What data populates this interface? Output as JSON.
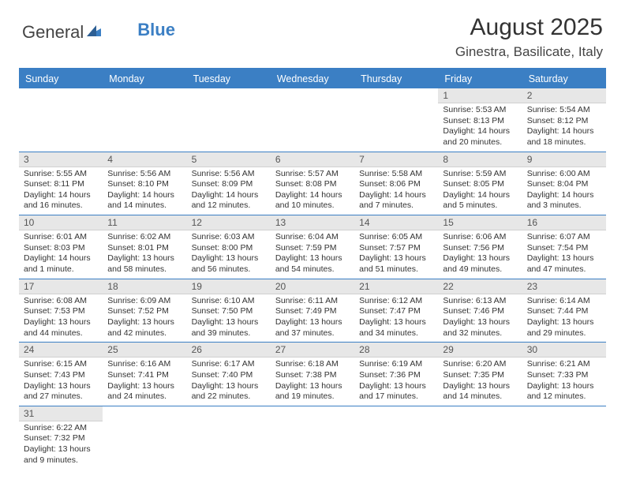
{
  "logo": {
    "part1": "General",
    "part2": "Blue"
  },
  "title": "August 2025",
  "location": "Ginestra, Basilicate, Italy",
  "colors": {
    "accent": "#3b7fc4",
    "header_bg": "#3b7fc4",
    "header_text": "#ffffff",
    "date_bg": "#e7e7e7",
    "divider": "#3b7fc4",
    "text": "#333333",
    "background": "#ffffff"
  },
  "typography": {
    "title_fontsize": 30,
    "location_fontsize": 17,
    "header_fontsize": 12.5,
    "datenum_fontsize": 12,
    "cell_fontsize": 10.5
  },
  "day_names": [
    "Sunday",
    "Monday",
    "Tuesday",
    "Wednesday",
    "Thursday",
    "Friday",
    "Saturday"
  ],
  "weeks": [
    [
      {
        "empty": true
      },
      {
        "empty": true
      },
      {
        "empty": true
      },
      {
        "empty": true
      },
      {
        "empty": true
      },
      {
        "day": "1",
        "sunrise": "Sunrise: 5:53 AM",
        "sunset": "Sunset: 8:13 PM",
        "daylight": "Daylight: 14 hours and 20 minutes."
      },
      {
        "day": "2",
        "sunrise": "Sunrise: 5:54 AM",
        "sunset": "Sunset: 8:12 PM",
        "daylight": "Daylight: 14 hours and 18 minutes."
      }
    ],
    [
      {
        "day": "3",
        "sunrise": "Sunrise: 5:55 AM",
        "sunset": "Sunset: 8:11 PM",
        "daylight": "Daylight: 14 hours and 16 minutes."
      },
      {
        "day": "4",
        "sunrise": "Sunrise: 5:56 AM",
        "sunset": "Sunset: 8:10 PM",
        "daylight": "Daylight: 14 hours and 14 minutes."
      },
      {
        "day": "5",
        "sunrise": "Sunrise: 5:56 AM",
        "sunset": "Sunset: 8:09 PM",
        "daylight": "Daylight: 14 hours and 12 minutes."
      },
      {
        "day": "6",
        "sunrise": "Sunrise: 5:57 AM",
        "sunset": "Sunset: 8:08 PM",
        "daylight": "Daylight: 14 hours and 10 minutes."
      },
      {
        "day": "7",
        "sunrise": "Sunrise: 5:58 AM",
        "sunset": "Sunset: 8:06 PM",
        "daylight": "Daylight: 14 hours and 7 minutes."
      },
      {
        "day": "8",
        "sunrise": "Sunrise: 5:59 AM",
        "sunset": "Sunset: 8:05 PM",
        "daylight": "Daylight: 14 hours and 5 minutes."
      },
      {
        "day": "9",
        "sunrise": "Sunrise: 6:00 AM",
        "sunset": "Sunset: 8:04 PM",
        "daylight": "Daylight: 14 hours and 3 minutes."
      }
    ],
    [
      {
        "day": "10",
        "sunrise": "Sunrise: 6:01 AM",
        "sunset": "Sunset: 8:03 PM",
        "daylight": "Daylight: 14 hours and 1 minute."
      },
      {
        "day": "11",
        "sunrise": "Sunrise: 6:02 AM",
        "sunset": "Sunset: 8:01 PM",
        "daylight": "Daylight: 13 hours and 58 minutes."
      },
      {
        "day": "12",
        "sunrise": "Sunrise: 6:03 AM",
        "sunset": "Sunset: 8:00 PM",
        "daylight": "Daylight: 13 hours and 56 minutes."
      },
      {
        "day": "13",
        "sunrise": "Sunrise: 6:04 AM",
        "sunset": "Sunset: 7:59 PM",
        "daylight": "Daylight: 13 hours and 54 minutes."
      },
      {
        "day": "14",
        "sunrise": "Sunrise: 6:05 AM",
        "sunset": "Sunset: 7:57 PM",
        "daylight": "Daylight: 13 hours and 51 minutes."
      },
      {
        "day": "15",
        "sunrise": "Sunrise: 6:06 AM",
        "sunset": "Sunset: 7:56 PM",
        "daylight": "Daylight: 13 hours and 49 minutes."
      },
      {
        "day": "16",
        "sunrise": "Sunrise: 6:07 AM",
        "sunset": "Sunset: 7:54 PM",
        "daylight": "Daylight: 13 hours and 47 minutes."
      }
    ],
    [
      {
        "day": "17",
        "sunrise": "Sunrise: 6:08 AM",
        "sunset": "Sunset: 7:53 PM",
        "daylight": "Daylight: 13 hours and 44 minutes."
      },
      {
        "day": "18",
        "sunrise": "Sunrise: 6:09 AM",
        "sunset": "Sunset: 7:52 PM",
        "daylight": "Daylight: 13 hours and 42 minutes."
      },
      {
        "day": "19",
        "sunrise": "Sunrise: 6:10 AM",
        "sunset": "Sunset: 7:50 PM",
        "daylight": "Daylight: 13 hours and 39 minutes."
      },
      {
        "day": "20",
        "sunrise": "Sunrise: 6:11 AM",
        "sunset": "Sunset: 7:49 PM",
        "daylight": "Daylight: 13 hours and 37 minutes."
      },
      {
        "day": "21",
        "sunrise": "Sunrise: 6:12 AM",
        "sunset": "Sunset: 7:47 PM",
        "daylight": "Daylight: 13 hours and 34 minutes."
      },
      {
        "day": "22",
        "sunrise": "Sunrise: 6:13 AM",
        "sunset": "Sunset: 7:46 PM",
        "daylight": "Daylight: 13 hours and 32 minutes."
      },
      {
        "day": "23",
        "sunrise": "Sunrise: 6:14 AM",
        "sunset": "Sunset: 7:44 PM",
        "daylight": "Daylight: 13 hours and 29 minutes."
      }
    ],
    [
      {
        "day": "24",
        "sunrise": "Sunrise: 6:15 AM",
        "sunset": "Sunset: 7:43 PM",
        "daylight": "Daylight: 13 hours and 27 minutes."
      },
      {
        "day": "25",
        "sunrise": "Sunrise: 6:16 AM",
        "sunset": "Sunset: 7:41 PM",
        "daylight": "Daylight: 13 hours and 24 minutes."
      },
      {
        "day": "26",
        "sunrise": "Sunrise: 6:17 AM",
        "sunset": "Sunset: 7:40 PM",
        "daylight": "Daylight: 13 hours and 22 minutes."
      },
      {
        "day": "27",
        "sunrise": "Sunrise: 6:18 AM",
        "sunset": "Sunset: 7:38 PM",
        "daylight": "Daylight: 13 hours and 19 minutes."
      },
      {
        "day": "28",
        "sunrise": "Sunrise: 6:19 AM",
        "sunset": "Sunset: 7:36 PM",
        "daylight": "Daylight: 13 hours and 17 minutes."
      },
      {
        "day": "29",
        "sunrise": "Sunrise: 6:20 AM",
        "sunset": "Sunset: 7:35 PM",
        "daylight": "Daylight: 13 hours and 14 minutes."
      },
      {
        "day": "30",
        "sunrise": "Sunrise: 6:21 AM",
        "sunset": "Sunset: 7:33 PM",
        "daylight": "Daylight: 13 hours and 12 minutes."
      }
    ],
    [
      {
        "day": "31",
        "sunrise": "Sunrise: 6:22 AM",
        "sunset": "Sunset: 7:32 PM",
        "daylight": "Daylight: 13 hours and 9 minutes."
      },
      {
        "empty": true
      },
      {
        "empty": true
      },
      {
        "empty": true
      },
      {
        "empty": true
      },
      {
        "empty": true
      },
      {
        "empty": true
      }
    ]
  ]
}
